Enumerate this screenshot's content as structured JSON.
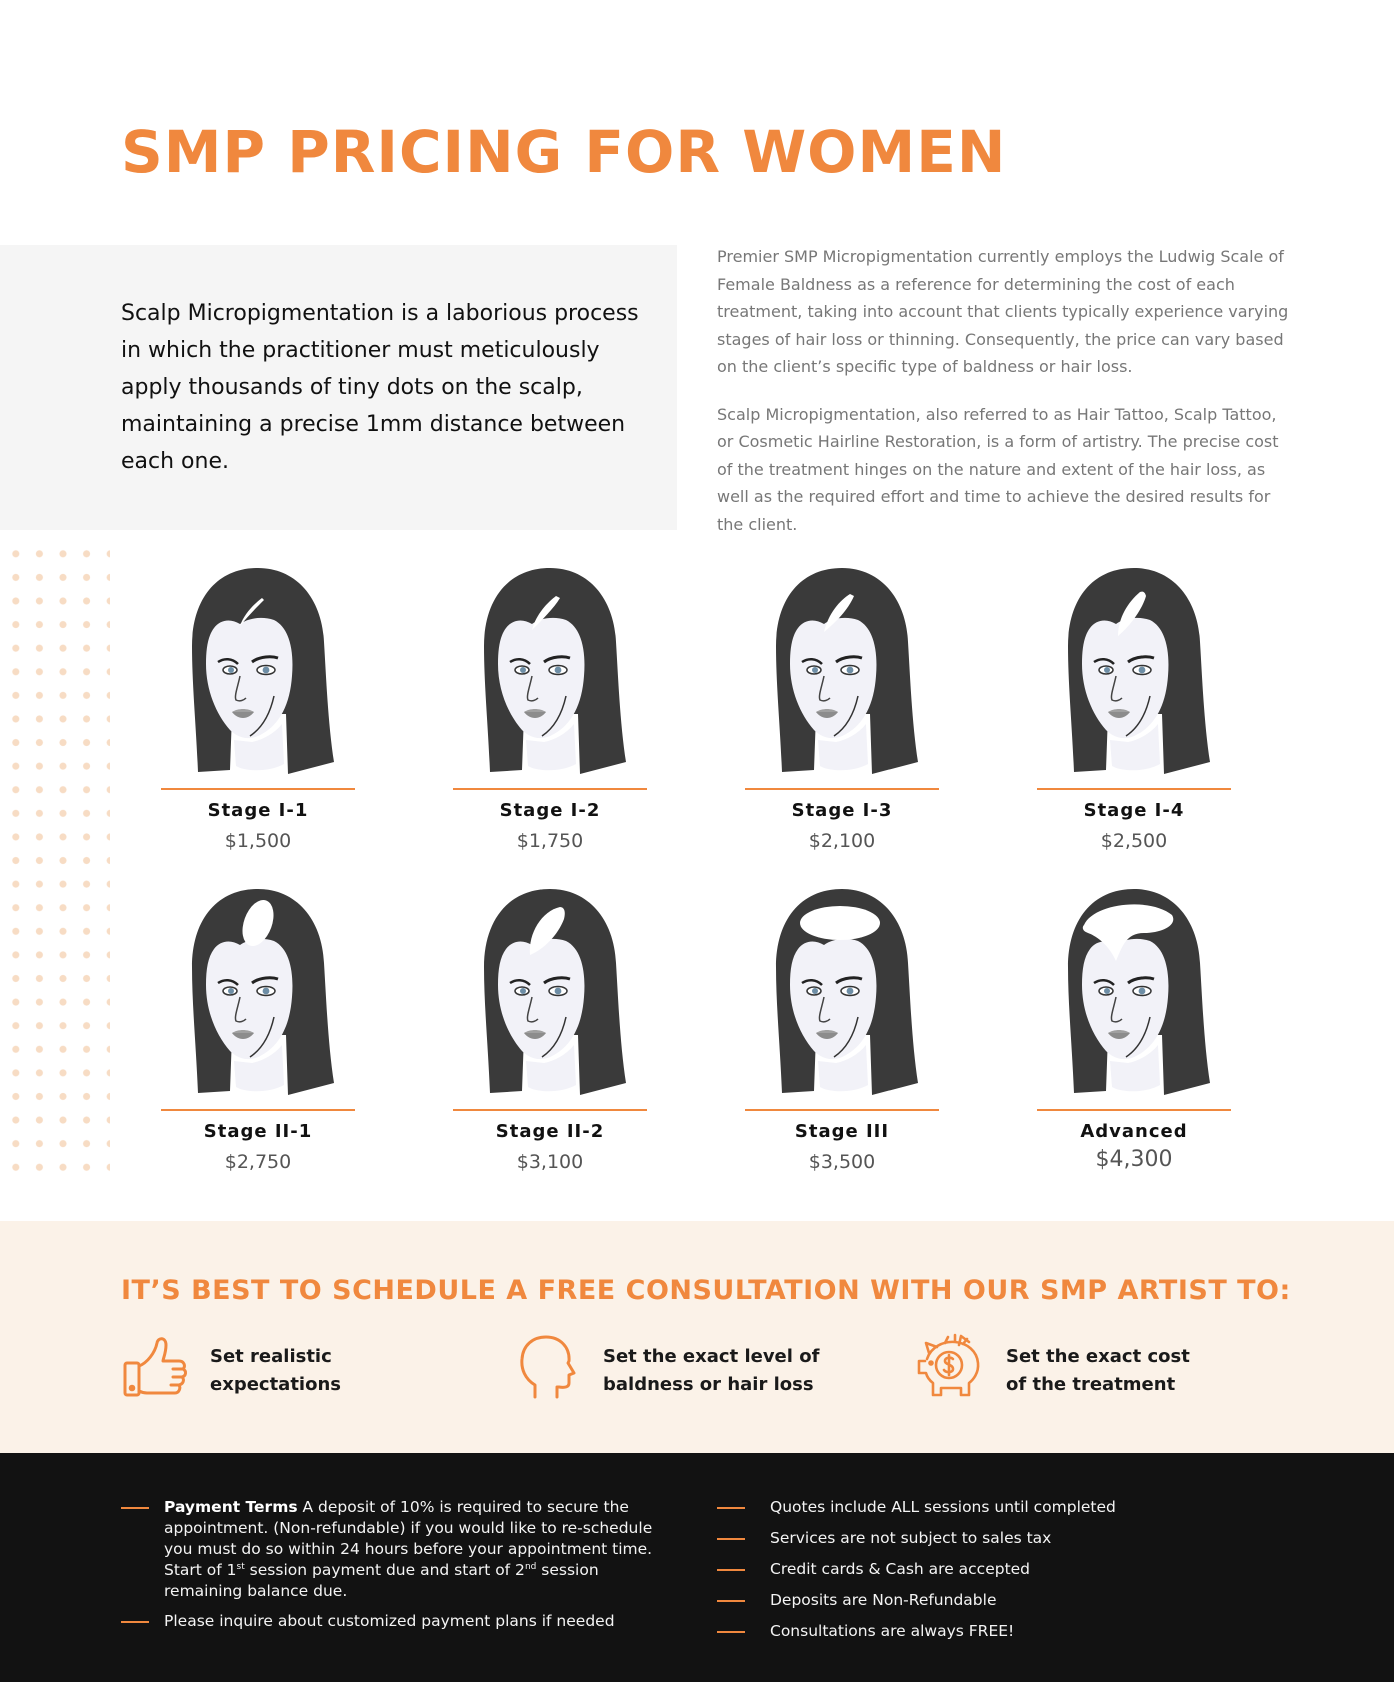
{
  "page": {
    "title": "SMP PRICING FOR WOMEN"
  },
  "intro": {
    "lead": "Scalp Micropigmentation is a laborious process in which the practitioner must meticulously apply thousands of tiny dots on the scalp, maintaining a precise 1mm distance between each one.",
    "paragraph_1": "Premier SMP Micropigmentation currently employs the Ludwig Scale of Female Baldness as a reference for determining the cost of each treatment, taking into account that clients typically experience varying stages of hair loss or thinning. Consequently, the price can vary based on the client’s specific type of baldness or hair loss.",
    "paragraph_2": "Scalp Micropigmentation, also referred to as Hair Tattoo, Scalp Tattoo, or Cosmetic Hairline Restoration, is a form of artistry. The precise cost of the treatment hinges on the nature and extent of the hair loss, as well as the required effort and time to achieve the desired results for the client."
  },
  "stages": [
    {
      "name": "Stage I-1",
      "price": "$1,500",
      "loss_level": 1
    },
    {
      "name": "Stage I-2",
      "price": "$1,750",
      "loss_level": 2
    },
    {
      "name": "Stage I-3",
      "price": "$2,100",
      "loss_level": 3
    },
    {
      "name": "Stage I-4",
      "price": "$2,500",
      "loss_level": 4
    },
    {
      "name": "Stage II-1",
      "price": "$2,750",
      "loss_level": 5
    },
    {
      "name": "Stage II-2",
      "price": "$3,100",
      "loss_level": 6
    },
    {
      "name": "Stage III",
      "price": "$3,500",
      "loss_level": 7
    },
    {
      "name": "Advanced",
      "price": "$4,300",
      "loss_level": 8
    }
  ],
  "consultation": {
    "title": "IT’S BEST TO SCHEDULE A FREE CONSULTATION WITH OUR SMP ARTIST TO:",
    "benefits": [
      {
        "icon": "thumbs-up-icon",
        "line_1": "Set realistic",
        "line_2": "expectations"
      },
      {
        "icon": "head-profile-icon",
        "line_1": "Set the exact level of",
        "line_2": "baldness or hair loss"
      },
      {
        "icon": "piggy-bank-icon",
        "line_1": "Set the exact cost",
        "line_2": "of the treatment"
      }
    ]
  },
  "footer": {
    "payment_label": "Payment Terms",
    "payment_text_1": " A deposit of 10% is required to secure the appointment. (Non-refundable) if you would like to re-schedule you must do so within 24 hours before your appointment time. Start of 1",
    "payment_sup_1": "st",
    "payment_text_2": " session payment due and start of 2",
    "payment_sup_2": "nd",
    "payment_text_3": " session remaining balance due.",
    "payment_plans": "Please inquire about customized payment plans if needed",
    "notes": [
      "Quotes include ALL sessions until completed",
      "Services are not subject to sales tax",
      "Credit cards & Cash are accepted",
      "Deposits are Non-Refundable",
      "Consultations are always FREE!"
    ]
  },
  "colors": {
    "accent": "#f0883e",
    "hair": "#3a3a3a",
    "skin": "#f2f2f8",
    "intro_bg": "#f5f5f5",
    "consult_bg": "#fbf2e8",
    "footer_bg": "#121212"
  }
}
